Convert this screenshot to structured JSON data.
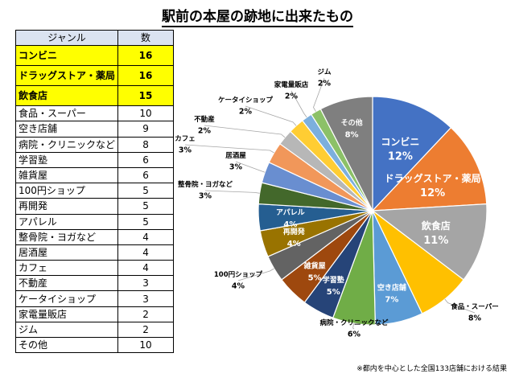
{
  "title": "駅前の本屋の跡地に出来たもの",
  "table": {
    "headers": [
      "ジャンル",
      "数"
    ],
    "rows": [
      {
        "label": "コンビニ",
        "count": "16",
        "highlight": true
      },
      {
        "label": "ドラッグストア・薬局",
        "count": "16",
        "highlight": true
      },
      {
        "label": "飲食店",
        "count": "15",
        "highlight": true
      },
      {
        "label": "食品・スーパー",
        "count": "10",
        "highlight": false
      },
      {
        "label": "空き店舗",
        "count": "9",
        "highlight": false
      },
      {
        "label": "病院・クリニックなど",
        "count": "8",
        "highlight": false
      },
      {
        "label": "学習塾",
        "count": "6",
        "highlight": false
      },
      {
        "label": "雑貨屋",
        "count": "6",
        "highlight": false
      },
      {
        "label": "100円ショップ",
        "count": "5",
        "highlight": false
      },
      {
        "label": "再開発",
        "count": "5",
        "highlight": false
      },
      {
        "label": "アパレル",
        "count": "5",
        "highlight": false
      },
      {
        "label": "整骨院・ヨガなど",
        "count": "4",
        "highlight": false
      },
      {
        "label": "居酒屋",
        "count": "4",
        "highlight": false
      },
      {
        "label": "カフェ",
        "count": "4",
        "highlight": false
      },
      {
        "label": "不動産",
        "count": "3",
        "highlight": false
      },
      {
        "label": "ケータイショップ",
        "count": "3",
        "highlight": false
      },
      {
        "label": "家電量販店",
        "count": "2",
        "highlight": false
      },
      {
        "label": "ジム",
        "count": "2",
        "highlight": false
      },
      {
        "label": "その他",
        "count": "10",
        "highlight": false
      }
    ]
  },
  "chart_data": {
    "type": "pie",
    "title": "駅前の本屋の跡地に出来たもの",
    "total": 133,
    "slices": [
      {
        "label": "コンビニ",
        "value": 16,
        "pct": "12%",
        "color": "#4472c4",
        "label_inside": true
      },
      {
        "label": "ドラッグストア・薬局",
        "value": 16,
        "pct": "12%",
        "color": "#ed7d31",
        "label_inside": true
      },
      {
        "label": "飲食店",
        "value": 15,
        "pct": "11%",
        "color": "#a5a5a5",
        "label_inside": true
      },
      {
        "label": "食品・スーパー",
        "value": 10,
        "pct": "8%",
        "color": "#ffc000",
        "label_inside": false
      },
      {
        "label": "空き店舗",
        "value": 9,
        "pct": "7%",
        "color": "#5b9bd5",
        "label_inside": true
      },
      {
        "label": "病院・クリニックなど",
        "value": 8,
        "pct": "6%",
        "color": "#70ad47",
        "label_inside": false
      },
      {
        "label": "学習塾",
        "value": 6,
        "pct": "5%",
        "color": "#264478",
        "label_inside": true
      },
      {
        "label": "雑貨屋",
        "value": 6,
        "pct": "5%",
        "color": "#9e480e",
        "label_inside": true
      },
      {
        "label": "100円ショップ",
        "value": 5,
        "pct": "4%",
        "color": "#636363",
        "label_inside": false
      },
      {
        "label": "再開発",
        "value": 5,
        "pct": "4%",
        "color": "#997300",
        "label_inside": true
      },
      {
        "label": "アパレル",
        "value": 5,
        "pct": "4%",
        "color": "#255e91",
        "label_inside": true
      },
      {
        "label": "整骨院・ヨガなど",
        "value": 4,
        "pct": "3%",
        "color": "#43682b",
        "label_inside": false
      },
      {
        "label": "居酒屋",
        "value": 4,
        "pct": "3%",
        "color": "#698ed0",
        "label_inside": false
      },
      {
        "label": "カフェ",
        "value": 4,
        "pct": "3%",
        "color": "#f1975a",
        "label_inside": false
      },
      {
        "label": "不動産",
        "value": 3,
        "pct": "2%",
        "color": "#b7b7b7",
        "label_inside": false
      },
      {
        "label": "ケータイショップ",
        "value": 3,
        "pct": "2%",
        "color": "#ffcd33",
        "label_inside": false
      },
      {
        "label": "家電量販店",
        "value": 2,
        "pct": "2%",
        "color": "#7cafdd",
        "label_inside": false
      },
      {
        "label": "ジム",
        "value": 2,
        "pct": "2%",
        "color": "#8cc168",
        "label_inside": false
      },
      {
        "label": "その他",
        "value": 10,
        "pct": "8%",
        "color": "#7f7f7f",
        "label_inside": true
      }
    ]
  },
  "note": "※都内を中心とした全国133店舗における結果"
}
